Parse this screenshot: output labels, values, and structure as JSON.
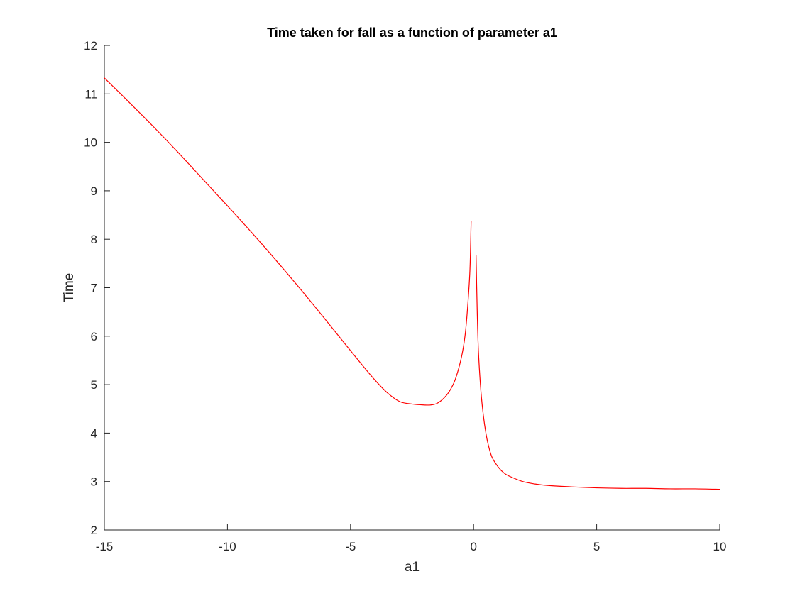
{
  "chart_data": {
    "type": "line",
    "title": "Time taken for fall as a function of parameter a1",
    "xlabel": "a1",
    "ylabel": "Time",
    "xlim": [
      -15,
      10
    ],
    "ylim": [
      2,
      12
    ],
    "xticks": [
      -15,
      -10,
      -5,
      0,
      5,
      10
    ],
    "yticks": [
      2,
      3,
      4,
      5,
      6,
      7,
      8,
      9,
      10,
      11,
      12
    ],
    "grid": false,
    "series": [
      {
        "color": "#ff0000",
        "segments": [
          {
            "x": [
              -15,
              -14,
              -13,
              -12,
              -11,
              -10,
              -9,
              -8,
              -7,
              -6,
              -5,
              -4.5,
              -4,
              -3.5,
              -3,
              -2.5,
              -2,
              -1.75,
              -1.5,
              -1.25,
              -1,
              -0.75,
              -0.5,
              -0.35,
              -0.25,
              -0.15,
              -0.1
            ],
            "y": [
              11.33,
              10.83,
              10.32,
              9.79,
              9.24,
              8.69,
              8.13,
              7.55,
              6.95,
              6.33,
              5.7,
              5.39,
              5.09,
              4.83,
              4.65,
              4.6,
              4.58,
              4.58,
              4.61,
              4.7,
              4.85,
              5.1,
              5.55,
              6.0,
              6.55,
              7.35,
              8.37
            ]
          },
          {
            "x": [
              0.1,
              0.15,
              0.2,
              0.3,
              0.4,
              0.5,
              0.6,
              0.75,
              1,
              1.25,
              1.5,
              2,
              2.5,
              3,
              4,
              5,
              6,
              7,
              8,
              9,
              10
            ],
            "y": [
              7.68,
              6.45,
              5.65,
              4.85,
              4.35,
              4.0,
              3.75,
              3.5,
              3.3,
              3.17,
              3.1,
              3.0,
              2.95,
              2.92,
              2.89,
              2.87,
              2.86,
              2.86,
              2.85,
              2.85,
              2.84
            ]
          }
        ]
      }
    ]
  }
}
